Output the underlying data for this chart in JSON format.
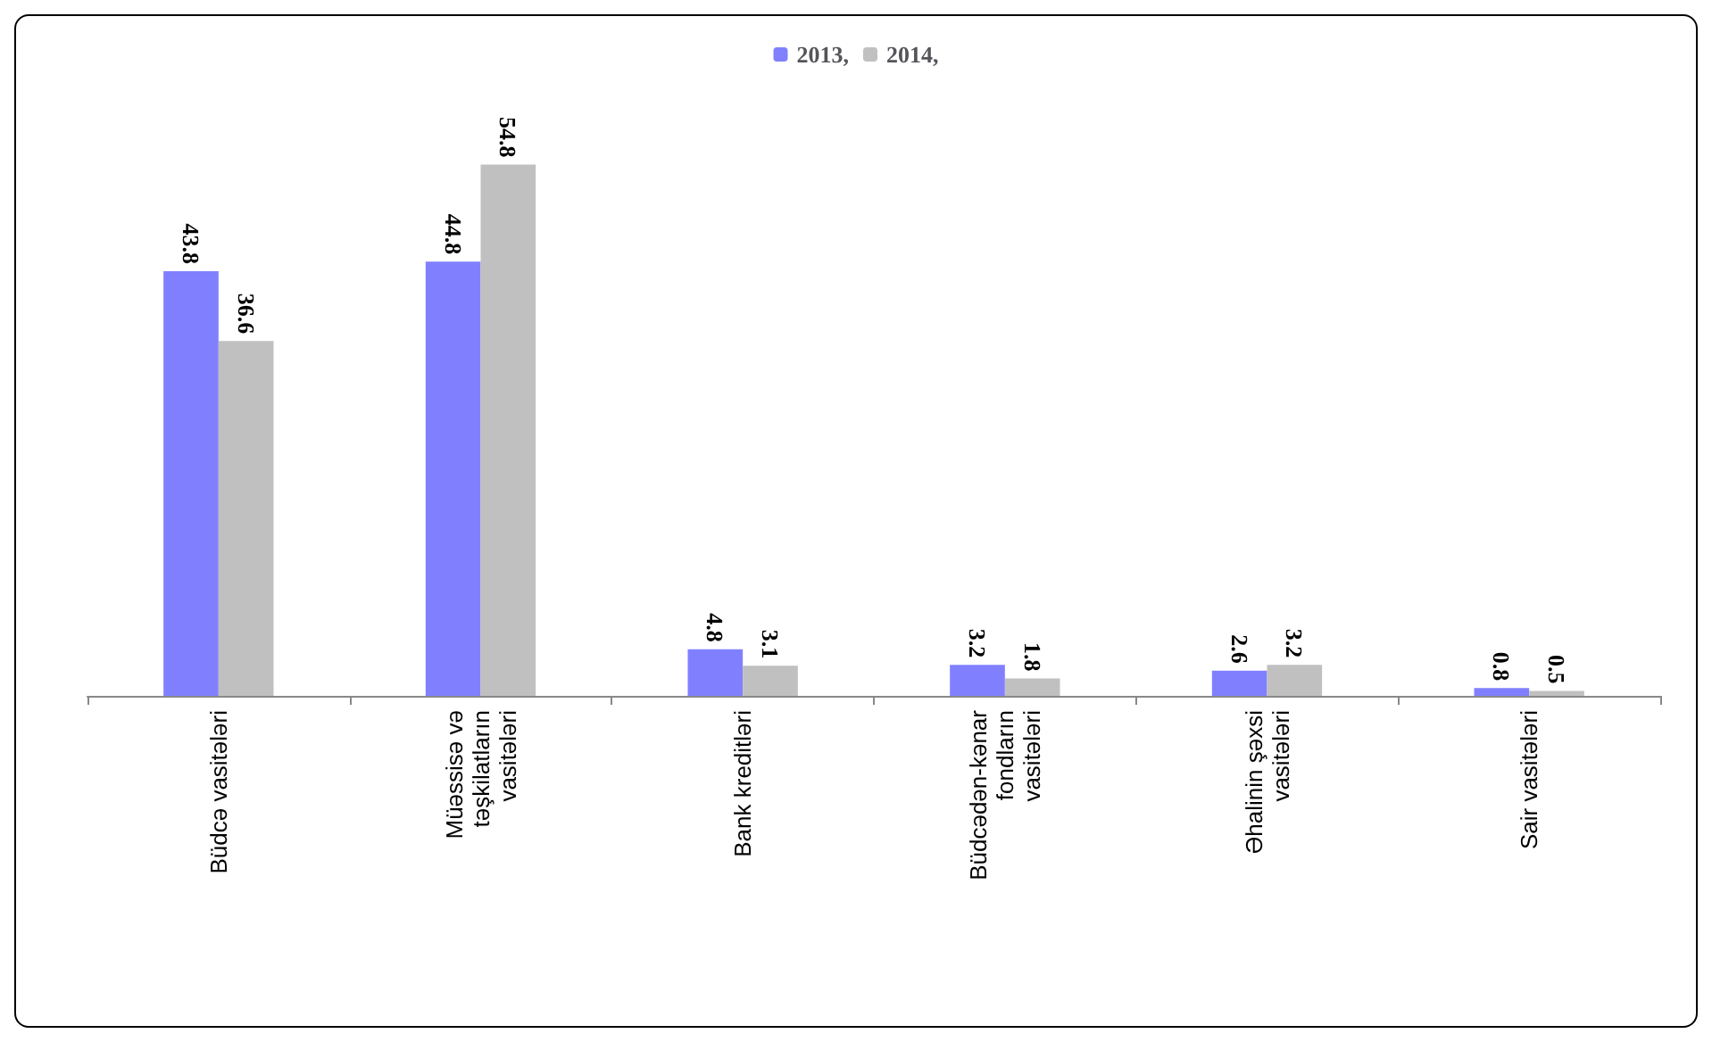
{
  "chart_data": {
    "type": "bar",
    "categories": [
      "Büdcə vasitələri",
      "Müəssisə və\ntəşkilatların\nvasitələri",
      "Bank kreditləri",
      "Büdcədən-kənar\nfondların\nvasitələri",
      "Əhalinin şəxsi\nvasitələri",
      "Sair vasitələri"
    ],
    "series": [
      {
        "name": "2013,",
        "color": "#8080ff",
        "values": [
          43.8,
          44.8,
          4.8,
          3.2,
          2.6,
          0.8
        ]
      },
      {
        "name": "2014,",
        "color": "#c0c0c0",
        "values": [
          36.6,
          54.8,
          3.1,
          1.8,
          3.2,
          0.5
        ]
      }
    ],
    "data_labels": true,
    "legend": "top"
  }
}
